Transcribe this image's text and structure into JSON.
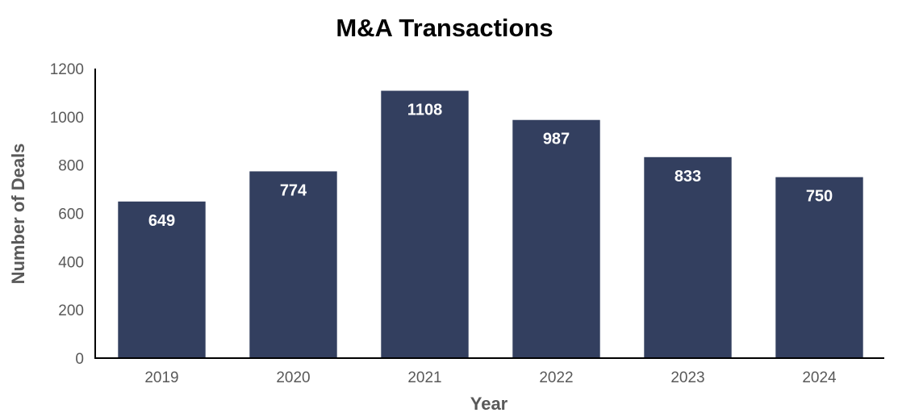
{
  "chart_data": {
    "type": "bar",
    "title": "M&A Transactions",
    "xlabel": "Year",
    "ylabel": "Number of Deals",
    "categories": [
      "2019",
      "2020",
      "2021",
      "2022",
      "2023",
      "2024"
    ],
    "values": [
      649,
      774,
      1108,
      987,
      833,
      750
    ],
    "data_labels": [
      "649",
      "774",
      "1108",
      "987",
      "833",
      "750"
    ],
    "ylim": [
      0,
      1200
    ],
    "yticks": [
      "0",
      "200",
      "400",
      "600",
      "800",
      "1000",
      "1200"
    ],
    "grid": false,
    "legend": "none",
    "bar_color": "#333f5f"
  }
}
